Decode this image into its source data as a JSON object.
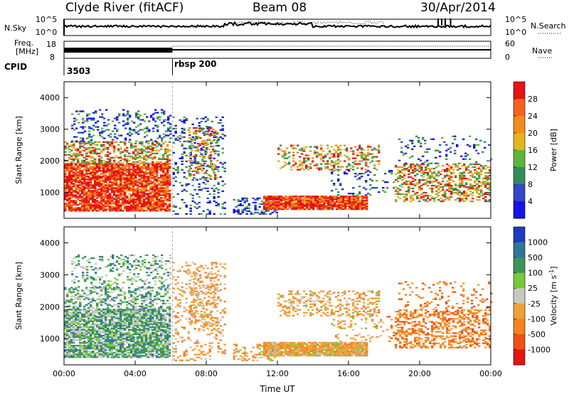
{
  "header": {
    "station": "Clyde River (fitACF)",
    "beam": "Beam 08",
    "date": "30/Apr/2014"
  },
  "summary_panels": {
    "nsky_label": "N.Sky",
    "nsearch_label": "N.Search",
    "log_top": "10^5",
    "log_bottom": "10^0",
    "log_top_right": "10^5",
    "log_bottom_right": "10^0",
    "freq_label_1": "Freq.",
    "freq_label_2": "[MHz]",
    "freq_top": "18",
    "freq_bottom": "8",
    "nave_label": "Nave",
    "nave_top": "60",
    "nave_bottom": "0",
    "cpid_label": "CPID",
    "cpid_values": [
      "3503",
      "rbsp 200"
    ]
  },
  "chart_data": [
    {
      "type": "heatmap",
      "panel": "power",
      "xlabel": "",
      "ylabel": "Slant Range [km]",
      "x_ticks": [
        "00:00",
        "04:00",
        "08:00",
        "12:00",
        "16:00",
        "20:00",
        "00:00"
      ],
      "y_ticks": [
        1000,
        2000,
        3000,
        4000
      ],
      "xlim_hours": [
        0,
        24
      ],
      "ylim_km": [
        180,
        4500
      ],
      "colorbar_label": "Power [dB]",
      "colorbar_ticks": [
        "4",
        "8",
        "12",
        "16",
        "20",
        "24",
        "28"
      ],
      "colors": [
        "#1414e6",
        "#3246c8",
        "#328c5a",
        "#5fb43c",
        "#e6b41e",
        "#f08c1e",
        "#f5641e",
        "#e61414"
      ]
    },
    {
      "type": "heatmap",
      "panel": "velocity",
      "xlabel": "Time UT",
      "ylabel": "Slant Range [km]",
      "x_ticks": [
        "00:00",
        "04:00",
        "08:00",
        "12:00",
        "16:00",
        "20:00",
        "00:00"
      ],
      "y_ticks": [
        1000,
        2000,
        3000,
        4000
      ],
      "xlim_hours": [
        0,
        24
      ],
      "ylim_km": [
        180,
        4500
      ],
      "colorbar_label": "Velocity [m s",
      "colorbar_label_sup": "-1",
      "colorbar_label_end": "]",
      "colorbar_ticks": [
        "1000",
        "500",
        "100",
        "25",
        "-25",
        "-100",
        "-500",
        "-1000"
      ],
      "colors": [
        "#1e3cbe",
        "#2d7896",
        "#3c965a",
        "#78c83c",
        "#c8c8be",
        "#f0a03c",
        "#f5821e",
        "#f05014",
        "#e61414"
      ]
    }
  ]
}
